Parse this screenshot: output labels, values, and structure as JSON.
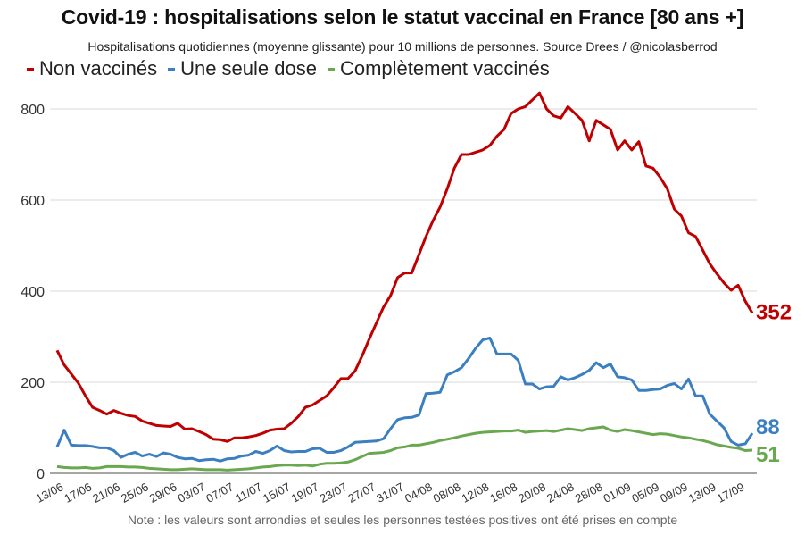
{
  "chart_data": {
    "type": "line",
    "title": "Covid-19 : hospitalisations selon le statut vaccinal en France [80 ans +]",
    "subtitle": "Hospitalisations quotidiennes (moyenne glissante) pour 10 millions de personnes. Source Drees / @nicolasberrod",
    "note": "Note : les valeurs sont arrondies et seules les personnes testées positives ont été prises en compte",
    "xlabel": "",
    "ylabel": "",
    "ylim": [
      0,
      800
    ],
    "yticks": [
      0,
      200,
      400,
      600,
      800
    ],
    "grid": true,
    "legend_position": "top-left",
    "x_start": "13/06",
    "x_end": "19/09",
    "xtick_labels": [
      "13/06",
      "17/06",
      "21/06",
      "25/06",
      "29/06",
      "03/07",
      "07/07",
      "11/07",
      "15/07",
      "19/07",
      "23/07",
      "27/07",
      "31/07",
      "04/08",
      "08/08",
      "12/08",
      "16/08",
      "20/08",
      "24/08",
      "28/08",
      "01/09",
      "05/09",
      "09/09",
      "13/09",
      "17/09"
    ],
    "xtick_step_days": 4,
    "series": [
      {
        "name": "Non vaccinés",
        "color": "#c00000",
        "end_label": "352",
        "values": [
          270,
          238,
          218,
          198,
          170,
          145,
          138,
          130,
          138,
          132,
          127,
          125,
          115,
          110,
          105,
          104,
          103,
          110,
          97,
          98,
          92,
          85,
          75,
          74,
          70,
          78,
          78,
          80,
          83,
          88,
          95,
          97,
          98,
          110,
          125,
          145,
          150,
          160,
          170,
          188,
          208,
          208,
          225,
          258,
          295,
          330,
          365,
          390,
          430,
          440,
          440,
          480,
          520,
          555,
          585,
          625,
          670,
          700,
          700,
          705,
          710,
          720,
          740,
          755,
          790,
          800,
          805,
          820,
          835,
          800,
          785,
          780,
          805,
          790,
          775,
          730,
          775,
          765,
          755,
          710,
          730,
          710,
          728,
          675,
          670,
          650,
          625,
          580,
          565,
          528,
          520,
          490,
          460,
          438,
          418,
          402,
          413,
          378,
          352
        ]
      },
      {
        "name": "Une seule dose",
        "color": "#3c7fc0",
        "end_label": "88",
        "values": [
          58,
          95,
          62,
          61,
          61,
          59,
          56,
          56,
          50,
          35,
          42,
          46,
          38,
          42,
          37,
          45,
          42,
          35,
          32,
          33,
          28,
          30,
          31,
          27,
          32,
          33,
          38,
          40,
          48,
          44,
          50,
          60,
          50,
          47,
          48,
          48,
          54,
          55,
          46,
          46,
          50,
          58,
          68,
          69,
          70,
          71,
          76,
          98,
          118,
          122,
          123,
          128,
          175,
          176,
          178,
          216,
          223,
          232,
          252,
          275,
          293,
          297,
          262,
          262,
          262,
          248,
          196,
          196,
          185,
          190,
          191,
          212,
          205,
          210,
          217,
          226,
          243,
          232,
          240,
          212,
          210,
          205,
          182,
          182,
          184,
          185,
          193,
          197,
          185,
          207,
          170,
          170,
          130,
          115,
          100,
          70,
          62,
          65,
          88
        ]
      },
      {
        "name": "Complètement vaccinés",
        "color": "#6aa84f",
        "end_label": "51",
        "values": [
          15,
          13,
          12,
          12,
          13,
          11,
          12,
          15,
          15,
          15,
          14,
          14,
          13,
          11,
          10,
          9,
          8,
          8,
          9,
          10,
          9,
          8,
          8,
          8,
          7,
          8,
          9,
          10,
          12,
          14,
          15,
          17,
          18,
          18,
          17,
          18,
          16,
          20,
          22,
          22,
          23,
          25,
          30,
          37,
          44,
          45,
          46,
          50,
          56,
          58,
          62,
          62,
          65,
          68,
          72,
          75,
          78,
          82,
          85,
          88,
          90,
          91,
          92,
          93,
          93,
          95,
          90,
          92,
          93,
          94,
          92,
          95,
          98,
          96,
          94,
          98,
          100,
          102,
          95,
          92,
          96,
          94,
          91,
          88,
          85,
          87,
          86,
          83,
          80,
          78,
          75,
          72,
          68,
          63,
          60,
          57,
          55,
          50,
          51
        ]
      }
    ]
  }
}
